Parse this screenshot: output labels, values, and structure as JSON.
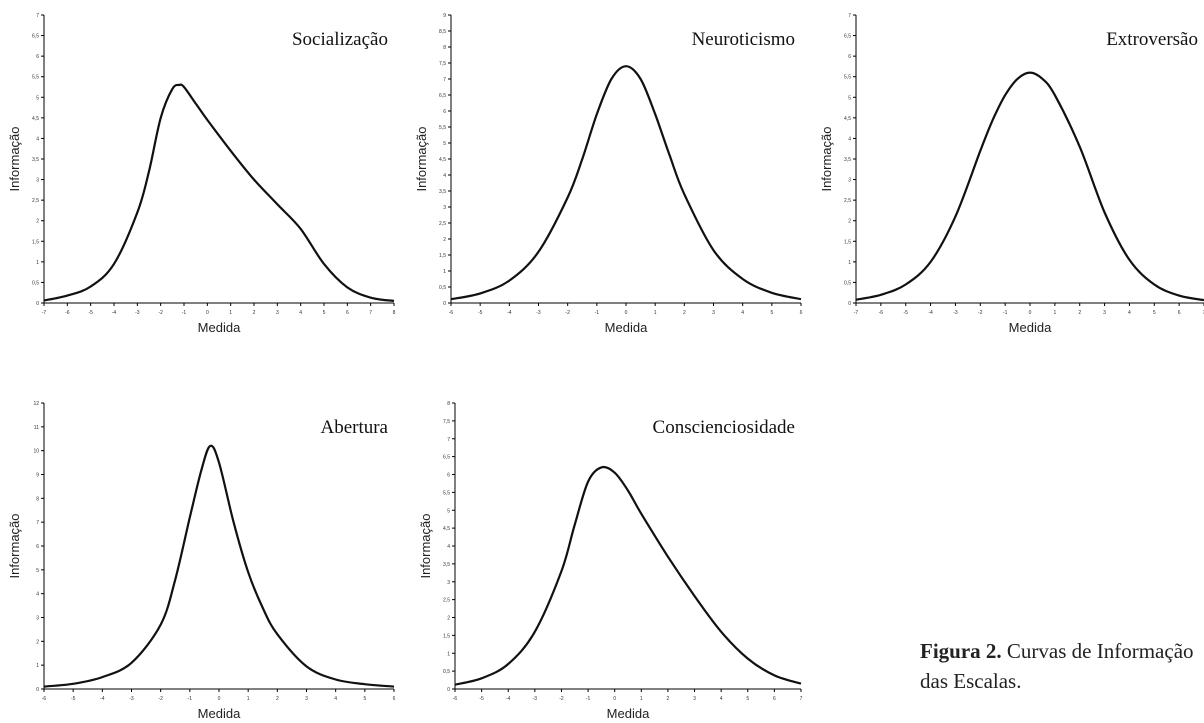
{
  "figure": {
    "caption_label": "Figura 2.",
    "caption_text": " Curvas de Informação das Escalas."
  },
  "chart_data": [
    {
      "type": "line",
      "title": "Socialização",
      "xlabel": "Medida",
      "ylabel": "Informação",
      "xlim": [
        -7,
        8
      ],
      "ylim": [
        0,
        7
      ],
      "xticks": [
        "-7",
        "-6",
        "-5",
        "-4",
        "-3",
        "-2",
        "-1",
        "0",
        "1",
        "2",
        "3",
        "4",
        "5",
        "6",
        "7",
        "8"
      ],
      "yticks": [
        "0",
        "0,5",
        "1",
        "1,5",
        "2",
        "2,5",
        "3",
        "3,5",
        "4",
        "4,5",
        "5",
        "5,5",
        "6",
        "6,5",
        "7"
      ],
      "grid": false,
      "series": [
        {
          "x": [
            -7,
            -6,
            -5,
            -4,
            -3,
            -2.5,
            -2,
            -1.5,
            -1.2,
            -1,
            -0.5,
            0,
            1,
            2,
            3,
            4,
            5,
            6,
            7,
            8
          ],
          "y": [
            0.06,
            0.18,
            0.4,
            0.95,
            2.2,
            3.2,
            4.5,
            5.2,
            5.3,
            5.25,
            4.85,
            4.45,
            3.7,
            3.0,
            2.4,
            1.8,
            0.95,
            0.38,
            0.13,
            0.05
          ]
        }
      ]
    },
    {
      "type": "line",
      "title": "Neuroticismo",
      "xlabel": "Medida",
      "ylabel": "Informação",
      "xlim": [
        -6,
        6
      ],
      "ylim": [
        0,
        9
      ],
      "xticks": [
        "-6",
        "-5",
        "-4",
        "-3",
        "-2",
        "-1",
        "0",
        "1",
        "2",
        "3",
        "4",
        "5",
        "6"
      ],
      "yticks": [
        "0",
        "0,5",
        "1",
        "1,5",
        "2",
        "2,5",
        "3",
        "3,5",
        "4",
        "4,5",
        "5",
        "5,5",
        "6",
        "6,5",
        "7",
        "7,5",
        "8",
        "8,5",
        "9"
      ],
      "grid": false,
      "series": [
        {
          "x": [
            -6,
            -5,
            -4,
            -3,
            -2,
            -1.5,
            -1,
            -0.5,
            0,
            0.5,
            1,
            1.5,
            2,
            3,
            4,
            5,
            6
          ],
          "y": [
            0.12,
            0.3,
            0.7,
            1.6,
            3.3,
            4.5,
            5.9,
            7.0,
            7.4,
            7.0,
            5.9,
            4.6,
            3.4,
            1.65,
            0.75,
            0.32,
            0.12
          ]
        }
      ]
    },
    {
      "type": "line",
      "title": "Extroversão",
      "xlabel": "Medida",
      "ylabel": "Informação",
      "xlim": [
        -7,
        7
      ],
      "ylim": [
        0,
        7
      ],
      "xticks": [
        "-7",
        "-6",
        "-5",
        "-4",
        "-3",
        "-2",
        "-1",
        "0",
        "1",
        "2",
        "3",
        "4",
        "5",
        "6",
        "7"
      ],
      "yticks": [
        "0",
        "0,5",
        "1",
        "1,5",
        "2",
        "2,5",
        "3",
        "3,5",
        "4",
        "4,5",
        "5",
        "5,5",
        "6",
        "6,5",
        "7"
      ],
      "grid": false,
      "series": [
        {
          "x": [
            -7,
            -6,
            -5,
            -4,
            -3,
            -2,
            -1.5,
            -1,
            -0.5,
            0,
            0.5,
            1,
            2,
            3,
            4,
            5,
            6,
            7
          ],
          "y": [
            0.08,
            0.2,
            0.45,
            1.0,
            2.1,
            3.7,
            4.45,
            5.05,
            5.45,
            5.6,
            5.45,
            5.05,
            3.8,
            2.2,
            1.05,
            0.45,
            0.18,
            0.07
          ]
        }
      ]
    },
    {
      "type": "line",
      "title": "Abertura",
      "xlabel": "Medida",
      "ylabel": "Informação",
      "xlim": [
        -6,
        6
      ],
      "ylim": [
        0,
        12
      ],
      "xticks": [
        "-6",
        "-5",
        "-4",
        "-3",
        "-2",
        "-1",
        "0",
        "1",
        "2",
        "3",
        "4",
        "5",
        "6"
      ],
      "yticks": [
        "0",
        "1",
        "2",
        "3",
        "4",
        "5",
        "6",
        "7",
        "8",
        "9",
        "10",
        "11",
        "12"
      ],
      "grid": false,
      "series": [
        {
          "x": [
            -6,
            -5,
            -4,
            -3,
            -2,
            -1.5,
            -1,
            -0.6,
            -0.3,
            0,
            0.5,
            1,
            1.5,
            2,
            3,
            4,
            5,
            6
          ],
          "y": [
            0.1,
            0.22,
            0.5,
            1.1,
            2.7,
            4.6,
            7.2,
            9.2,
            10.2,
            9.5,
            7.0,
            4.9,
            3.4,
            2.3,
            0.95,
            0.4,
            0.2,
            0.1
          ]
        }
      ]
    },
    {
      "type": "line",
      "title": "Conscienciosidade",
      "xlabel": "Medida",
      "ylabel": "Informação",
      "xlim": [
        -6,
        7
      ],
      "ylim": [
        0,
        8
      ],
      "xticks": [
        "-6",
        "-5",
        "-4",
        "-3",
        "-2",
        "-1",
        "0",
        "1",
        "2",
        "3",
        "4",
        "5",
        "6",
        "7"
      ],
      "yticks": [
        "0",
        "0,5",
        "1",
        "1,5",
        "2",
        "2,5",
        "3",
        "3,5",
        "4",
        "4,5",
        "5",
        "5,5",
        "6",
        "6,5",
        "7",
        "7,5",
        "8"
      ],
      "grid": false,
      "series": [
        {
          "x": [
            -6,
            -5,
            -4,
            -3,
            -2,
            -1.5,
            -1,
            -0.5,
            0,
            0.5,
            1,
            2,
            3,
            4,
            5,
            6,
            7
          ],
          "y": [
            0.12,
            0.3,
            0.7,
            1.6,
            3.3,
            4.6,
            5.8,
            6.2,
            6.05,
            5.55,
            4.9,
            3.7,
            2.6,
            1.6,
            0.85,
            0.38,
            0.15
          ]
        }
      ]
    }
  ]
}
